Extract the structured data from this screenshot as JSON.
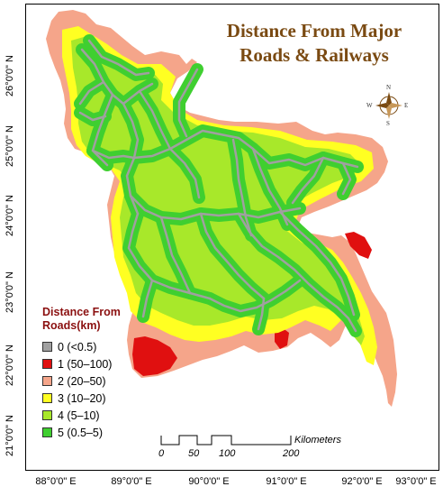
{
  "map": {
    "title_line1": "Distance From Major",
    "title_line2": "Roads & Railways",
    "colors": {
      "title": "#7a4a12",
      "legend_title": "#8b1010",
      "road": "#a0a0a0",
      "far": "#e01010",
      "mid": "#f5a58a",
      "near": "#ffff22",
      "closer": "#a8e82a",
      "closest": "#3fcf30"
    }
  },
  "legend": {
    "title_line1": "Distance From",
    "title_line2": "Roads(km)",
    "items": [
      {
        "label": "0 (<0.5)",
        "color": "#a0a0a0"
      },
      {
        "label": "1 (50–100)",
        "color": "#e01010"
      },
      {
        "label": "2 (20–50)",
        "color": "#f5a58a"
      },
      {
        "label": "3 (10–20)",
        "color": "#ffff22"
      },
      {
        "label": "4 (5–10)",
        "color": "#a8e82a"
      },
      {
        "label": "5 (0.5–5)",
        "color": "#3fcf30"
      }
    ]
  },
  "axes": {
    "latitude_labels": [
      "26°0'0\" N",
      "25°0'0\" N",
      "24°0'0\" N",
      "23°0'0\" N",
      "22°0'0\" N",
      "21°0'0\" N"
    ],
    "longitude_labels": [
      "88°0'0\" E",
      "89°0'0\" E",
      "90°0'0\" E",
      "91°0'0\" E",
      "92°0'0\" E",
      "93°0'0\" E"
    ]
  },
  "scale_bar": {
    "ticks": [
      "0",
      "50",
      "100",
      "200"
    ],
    "unit": "Kilometers"
  },
  "compass": {
    "n": "N",
    "s": "S",
    "e": "E",
    "w": "W"
  }
}
